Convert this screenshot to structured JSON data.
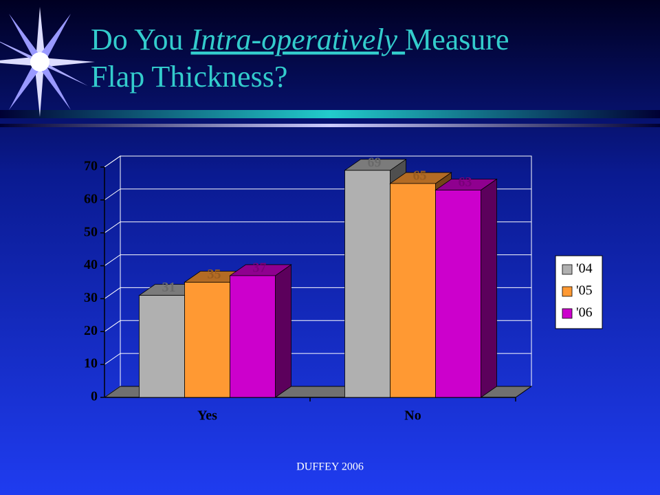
{
  "chart_data": {
    "type": "bar",
    "title": "Do You Intra-operatively Measure Flap Thickness?",
    "title_emphasis": "Intra-operatively ",
    "categories": [
      "Yes",
      "No"
    ],
    "series": [
      {
        "name": "'04",
        "color": "#b0b0b0",
        "values": [
          31,
          69
        ]
      },
      {
        "name": "'05",
        "color": "#ff9933",
        "values": [
          35,
          65
        ]
      },
      {
        "name": "'06",
        "color": "#cc00cc",
        "values": [
          37,
          63
        ]
      }
    ],
    "ylim": [
      0,
      70
    ],
    "yticks": [
      0,
      10,
      20,
      30,
      40,
      50,
      60,
      70
    ],
    "grid": true,
    "legend": "right"
  },
  "footer": "DUFFEY 2006"
}
